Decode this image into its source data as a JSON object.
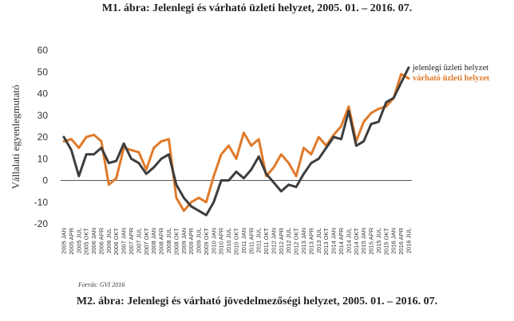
{
  "page": {
    "title_top": "M1. ábra: Jelenlegi és várható üzleti helyzet, 2005. 01. – 2016. 07.",
    "title_bottom": "M2. ábra: Jelenlegi és várható jövedelmezőségi helyzet, 2005. 01. – 2016. 07.",
    "source": "Forrás: GVI 2016"
  },
  "colors": {
    "current": "#3d3d3d",
    "expected": "#e07a2a",
    "zero_line": "#555555"
  },
  "chart_data": {
    "type": "line",
    "ylabel": "Vállalati egyenlegmutató",
    "ylim": [
      -20,
      60
    ],
    "yticks": [
      -20,
      -10,
      0,
      10,
      20,
      30,
      40,
      50,
      60
    ],
    "grid": false,
    "legend_position": "right",
    "x": [
      "2005 JAN",
      "2005 APR",
      "2005 JUL",
      "2005 OKT",
      "2006 JAN",
      "2006 APR",
      "2006 JUL",
      "2006 OKT",
      "2007 JAN",
      "2007 APR",
      "2007 JUL",
      "2007 OKT",
      "2008 JAN",
      "2008 APR",
      "2008 JUL",
      "2008 OKT",
      "2009 JAN",
      "2009 APR",
      "2009 JUL",
      "2009 OKT",
      "2010 JAN",
      "2010 APR",
      "2010 JUL",
      "2010 OKT",
      "2011 JAN",
      "2011 APR",
      "2011 JUL",
      "2011 OKT",
      "2012 JAN",
      "2012 APR",
      "2012 JUL",
      "2012 OKT",
      "2013 JAN",
      "2013 APR",
      "2013 JUL",
      "2013 OKT",
      "2014 JAN",
      "2014 APR",
      "2014 JUL",
      "2014 OKT",
      "2015 JAN",
      "2015 APR",
      "2015 JUL",
      "2015 OKT",
      "2016 JAN",
      "2016 APR",
      "2016 JUL"
    ],
    "series": [
      {
        "name": "jelenlegi üzleti helyzet",
        "values": [
          20,
          14,
          2,
          12,
          12,
          15,
          8,
          9,
          17,
          10,
          8,
          3,
          6,
          10,
          12,
          -2,
          -8,
          -12,
          -14,
          -16,
          -10,
          0,
          0,
          4,
          1,
          5,
          11,
          3,
          -1,
          -5,
          -2,
          -3,
          3,
          8,
          10,
          15,
          20,
          19,
          32,
          16,
          18,
          26,
          27,
          36,
          38,
          45,
          52
        ]
      },
      {
        "name": "várható üzleti helyzet",
        "values": [
          18,
          19,
          15,
          20,
          21,
          18,
          -2,
          1,
          15,
          14,
          13,
          5,
          15,
          18,
          19,
          -8,
          -14,
          -10,
          -8,
          -10,
          2,
          12,
          16,
          10,
          22,
          16,
          19,
          2,
          6,
          12,
          8,
          2,
          15,
          12,
          20,
          16,
          21,
          25,
          34,
          18,
          27,
          31,
          33,
          34,
          38,
          49,
          47
        ]
      }
    ]
  }
}
